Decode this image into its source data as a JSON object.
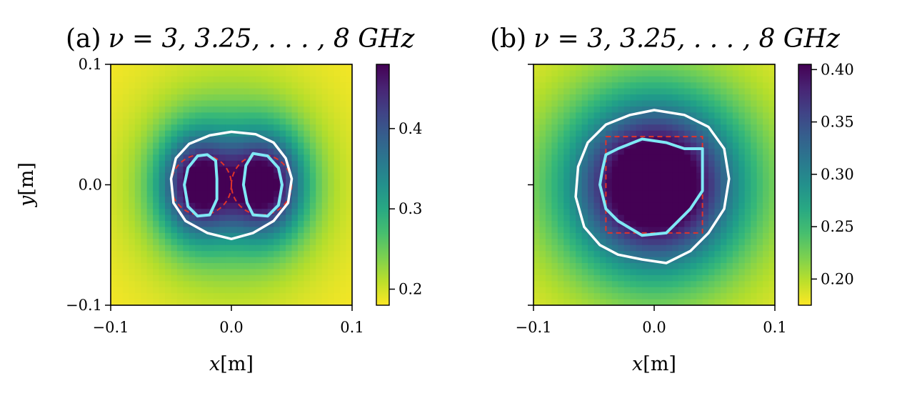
{
  "chart_data": [
    {
      "type": "heatmap",
      "panel": "(a)",
      "title_prefix": "(a)",
      "title_formula": "ν = 3, 3.25, . . . , 8 GHz",
      "xlabel_var": "x",
      "xlabel_unit": "[m]",
      "ylabel_var": "y",
      "ylabel_unit": "[m]",
      "xlim": [
        -0.1,
        0.1
      ],
      "ylim": [
        -0.1,
        0.1
      ],
      "xticks": [
        -0.1,
        0.0,
        0.1
      ],
      "xtick_labels": [
        "−0.1",
        "0.0",
        "0.1"
      ],
      "yticks": [
        -0.1,
        0.0,
        0.1
      ],
      "ytick_labels": [
        "−0.1",
        "0.0",
        "0.1"
      ],
      "colormap": "viridis_r",
      "colorbar": {
        "min": 0.18,
        "max": 0.48,
        "ticks": [
          0.2,
          0.3,
          0.4
        ],
        "tick_labels": [
          "0.2",
          "0.3",
          "0.4"
        ]
      },
      "field_background": 0.18,
      "field_components": [
        {
          "cx": -0.028,
          "cy": 0.0,
          "sx": 0.022,
          "sy": 0.03,
          "amp": 0.24
        },
        {
          "cx": 0.028,
          "cy": 0.0,
          "sx": 0.022,
          "sy": 0.03,
          "amp": 0.24
        },
        {
          "cx": 0.0,
          "cy": 0.0,
          "sx": 0.055,
          "sy": 0.06,
          "amp": 0.1
        }
      ],
      "true_shape": {
        "kind": "two_disks",
        "centers": [
          [
            -0.025,
            0.0
          ],
          [
            0.025,
            0.0
          ]
        ],
        "radius": 0.025,
        "color": "#e0342a"
      },
      "contour_outer": {
        "color": "#ffffff",
        "points": [
          [
            0.0,
            0.044
          ],
          [
            0.02,
            0.042
          ],
          [
            0.035,
            0.035
          ],
          [
            0.045,
            0.022
          ],
          [
            0.05,
            0.005
          ],
          [
            0.047,
            -0.015
          ],
          [
            0.035,
            -0.03
          ],
          [
            0.018,
            -0.04
          ],
          [
            0.0,
            -0.045
          ],
          [
            -0.02,
            -0.04
          ],
          [
            -0.038,
            -0.03
          ],
          [
            -0.048,
            -0.015
          ],
          [
            -0.05,
            0.005
          ],
          [
            -0.046,
            0.022
          ],
          [
            -0.035,
            0.034
          ],
          [
            -0.018,
            0.041
          ]
        ]
      },
      "contour_inner": {
        "color": "#7fe8f5",
        "curves": [
          [
            [
              -0.02,
              0.025
            ],
            [
              -0.013,
              0.02
            ],
            [
              -0.012,
              0.005
            ],
            [
              -0.012,
              -0.012
            ],
            [
              -0.018,
              -0.025
            ],
            [
              -0.028,
              -0.026
            ],
            [
              -0.036,
              -0.018
            ],
            [
              -0.039,
              0.0
            ],
            [
              -0.036,
              0.014
            ],
            [
              -0.028,
              0.024
            ]
          ],
          [
            [
              0.018,
              0.026
            ],
            [
              0.03,
              0.024
            ],
            [
              0.039,
              0.014
            ],
            [
              0.042,
              0.0
            ],
            [
              0.039,
              -0.017
            ],
            [
              0.03,
              -0.026
            ],
            [
              0.018,
              -0.025
            ],
            [
              0.013,
              -0.015
            ],
            [
              0.01,
              0.0
            ],
            [
              0.012,
              0.016
            ]
          ]
        ]
      }
    },
    {
      "type": "heatmap",
      "panel": "(b)",
      "title_prefix": "(b)",
      "title_formula": "ν = 3, 3.25, . . . , 8 GHz",
      "xlabel_var": "x",
      "xlabel_unit": "[m]",
      "xlim": [
        -0.1,
        0.1
      ],
      "ylim": [
        -0.1,
        0.1
      ],
      "xticks": [
        -0.1,
        0.0,
        0.1
      ],
      "xtick_labels": [
        "−0.1",
        "0.0",
        "0.1"
      ],
      "yticks": [
        -0.1,
        0.0,
        0.1
      ],
      "colormap": "viridis_r",
      "colorbar": {
        "min": 0.175,
        "max": 0.405,
        "ticks": [
          0.2,
          0.25,
          0.3,
          0.35,
          0.4
        ],
        "tick_labels": [
          "0.20",
          "0.25",
          "0.30",
          "0.35",
          "0.40"
        ]
      },
      "field_background": 0.175,
      "field_components": [
        {
          "cx": 0.0,
          "cy": 0.0,
          "sx": 0.045,
          "sy": 0.045,
          "amp": 0.23
        },
        {
          "cx": 0.0,
          "cy": 0.0,
          "sx": 0.075,
          "sy": 0.075,
          "amp": 0.07
        }
      ],
      "true_shape": {
        "kind": "square",
        "xmin": -0.04,
        "xmax": 0.04,
        "ymin": -0.04,
        "ymax": 0.04,
        "color": "#e0342a"
      },
      "contour_outer": {
        "color": "#ffffff",
        "points": [
          [
            0.0,
            0.062
          ],
          [
            0.025,
            0.058
          ],
          [
            0.045,
            0.048
          ],
          [
            0.058,
            0.03
          ],
          [
            0.062,
            0.005
          ],
          [
            0.058,
            -0.02
          ],
          [
            0.045,
            -0.04
          ],
          [
            0.03,
            -0.055
          ],
          [
            0.01,
            -0.065
          ],
          [
            -0.01,
            -0.062
          ],
          [
            -0.03,
            -0.058
          ],
          [
            -0.045,
            -0.05
          ],
          [
            -0.058,
            -0.035
          ],
          [
            -0.065,
            -0.01
          ],
          [
            -0.063,
            0.015
          ],
          [
            -0.055,
            0.035
          ],
          [
            -0.04,
            0.05
          ],
          [
            -0.02,
            0.058
          ]
        ]
      },
      "contour_inner": {
        "color": "#7fe8f5",
        "curves": [
          [
            [
              -0.04,
              0.025
            ],
            [
              -0.03,
              0.03
            ],
            [
              -0.01,
              0.038
            ],
            [
              0.01,
              0.035
            ],
            [
              0.025,
              0.03
            ],
            [
              0.04,
              0.03
            ],
            [
              0.04,
              0.015
            ],
            [
              0.04,
              -0.005
            ],
            [
              0.03,
              -0.02
            ],
            [
              0.02,
              -0.03
            ],
            [
              0.01,
              -0.04
            ],
            [
              -0.01,
              -0.042
            ],
            [
              -0.03,
              -0.03
            ],
            [
              -0.04,
              -0.02
            ],
            [
              -0.045,
              0.0
            ],
            [
              -0.043,
              0.012
            ]
          ]
        ]
      }
    }
  ]
}
